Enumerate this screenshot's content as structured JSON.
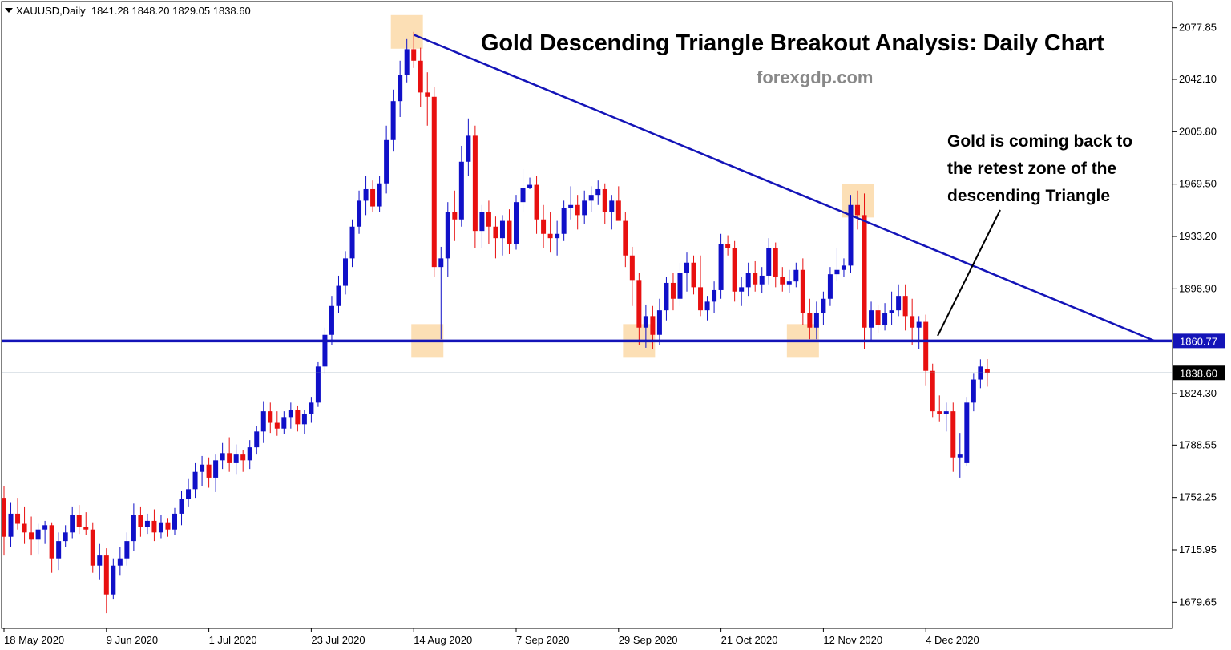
{
  "header": {
    "symbol": "XAUUSD,Daily",
    "ohlc": "1841.28 1848.20 1829.05 1838.60"
  },
  "title": "Gold Descending Triangle Breakout Analysis: Daily Chart",
  "watermark": "forexgdp.com",
  "annotation": {
    "line1": "Gold is coming back to",
    "line2": "the retest zone of the",
    "line3": "descending Triangle"
  },
  "chart_data": {
    "type": "candlestick",
    "symbol": "XAUUSD",
    "timeframe": "Daily",
    "ylim": [
      1661.5,
      2096.0
    ],
    "y_ticks": [
      2077.85,
      2042.1,
      2005.8,
      1969.5,
      1933.2,
      1896.9,
      1824.3,
      1788.55,
      1752.25,
      1715.95,
      1679.65
    ],
    "x_ticks": [
      "18 May 2020",
      "9 Jun 2020",
      "1 Jul 2020",
      "23 Jul 2020",
      "14 Aug 2020",
      "7 Sep 2020",
      "29 Sep 2020",
      "21 Oct 2020",
      "12 Nov 2020",
      "4 Dec 2020"
    ],
    "support_level": 1860.77,
    "current_price": 1838.6,
    "candles": [
      [
        1752,
        1760,
        1712,
        1725
      ],
      [
        1725,
        1749,
        1718,
        1741
      ],
      [
        1741,
        1752,
        1730,
        1734
      ],
      [
        1734,
        1746,
        1720,
        1728
      ],
      [
        1728,
        1739,
        1712,
        1723
      ],
      [
        1723,
        1734,
        1713,
        1730
      ],
      [
        1730,
        1736,
        1720,
        1733
      ],
      [
        1733,
        1735,
        1700,
        1710
      ],
      [
        1710,
        1728,
        1702,
        1722
      ],
      [
        1722,
        1733,
        1718,
        1728
      ],
      [
        1728,
        1746,
        1724,
        1740
      ],
      [
        1740,
        1747,
        1727,
        1732
      ],
      [
        1732,
        1742,
        1726,
        1730
      ],
      [
        1730,
        1735,
        1700,
        1705
      ],
      [
        1705,
        1720,
        1695,
        1712
      ],
      [
        1712,
        1717,
        1672,
        1685
      ],
      [
        1685,
        1710,
        1682,
        1705
      ],
      [
        1705,
        1718,
        1698,
        1710
      ],
      [
        1710,
        1728,
        1705,
        1722
      ],
      [
        1722,
        1748,
        1715,
        1740
      ],
      [
        1740,
        1746,
        1725,
        1732
      ],
      [
        1732,
        1741,
        1727,
        1736
      ],
      [
        1736,
        1744,
        1722,
        1728
      ],
      [
        1728,
        1740,
        1724,
        1735
      ],
      [
        1735,
        1738,
        1725,
        1730
      ],
      [
        1730,
        1745,
        1726,
        1741
      ],
      [
        1741,
        1757,
        1733,
        1751
      ],
      [
        1751,
        1765,
        1746,
        1758
      ],
      [
        1758,
        1776,
        1752,
        1770
      ],
      [
        1770,
        1781,
        1760,
        1775
      ],
      [
        1775,
        1780,
        1759,
        1766
      ],
      [
        1766,
        1782,
        1756,
        1778
      ],
      [
        1778,
        1790,
        1772,
        1783
      ],
      [
        1783,
        1794,
        1770,
        1776
      ],
      [
        1776,
        1789,
        1768,
        1782
      ],
      [
        1782,
        1785,
        1770,
        1778
      ],
      [
        1778,
        1792,
        1772,
        1787
      ],
      [
        1787,
        1802,
        1782,
        1798
      ],
      [
        1798,
        1819,
        1790,
        1812
      ],
      [
        1812,
        1818,
        1797,
        1804
      ],
      [
        1804,
        1812,
        1795,
        1800
      ],
      [
        1800,
        1812,
        1796,
        1808
      ],
      [
        1808,
        1818,
        1800,
        1813
      ],
      [
        1813,
        1816,
        1798,
        1803
      ],
      [
        1803,
        1813,
        1796,
        1810
      ],
      [
        1810,
        1822,
        1804,
        1818
      ],
      [
        1818,
        1846,
        1815,
        1843
      ],
      [
        1843,
        1870,
        1838,
        1865
      ],
      [
        1865,
        1892,
        1858,
        1885
      ],
      [
        1885,
        1906,
        1880,
        1899
      ],
      [
        1899,
        1923,
        1893,
        1918
      ],
      [
        1918,
        1945,
        1912,
        1940
      ],
      [
        1940,
        1965,
        1935,
        1958
      ],
      [
        1958,
        1975,
        1948,
        1966
      ],
      [
        1966,
        1972,
        1950,
        1954
      ],
      [
        1954,
        1975,
        1950,
        1970
      ],
      [
        1970,
        2010,
        1963,
        2000
      ],
      [
        2000,
        2035,
        1992,
        2027
      ],
      [
        2027,
        2055,
        2016,
        2045
      ],
      [
        2045,
        2070,
        2040,
        2063
      ],
      [
        2063,
        2075,
        2050,
        2055
      ],
      [
        2055,
        2064,
        2023,
        2033
      ],
      [
        2033,
        2047,
        2010,
        2030
      ],
      [
        2030,
        2037,
        1905,
        1912
      ],
      [
        1912,
        1926,
        1862,
        1918
      ],
      [
        1918,
        1957,
        1905,
        1950
      ],
      [
        1950,
        1965,
        1930,
        1945
      ],
      [
        1945,
        1996,
        1940,
        1985
      ],
      [
        1985,
        2015,
        1975,
        2003
      ],
      [
        2003,
        2010,
        1925,
        1937
      ],
      [
        1937,
        1955,
        1925,
        1950
      ],
      [
        1950,
        1958,
        1928,
        1940
      ],
      [
        1940,
        1947,
        1918,
        1932
      ],
      [
        1932,
        1948,
        1920,
        1944
      ],
      [
        1944,
        1952,
        1921,
        1928
      ],
      [
        1928,
        1962,
        1924,
        1957
      ],
      [
        1957,
        1980,
        1950,
        1967
      ],
      [
        1967,
        1974,
        1966,
        1969
      ],
      [
        1969,
        1975,
        1935,
        1945
      ],
      [
        1945,
        1955,
        1925,
        1935
      ],
      [
        1935,
        1950,
        1922,
        1932
      ],
      [
        1932,
        1944,
        1920,
        1935
      ],
      [
        1935,
        1958,
        1930,
        1953
      ],
      [
        1953,
        1968,
        1945,
        1955
      ],
      [
        1955,
        1962,
        1938,
        1948
      ],
      [
        1948,
        1965,
        1942,
        1958
      ],
      [
        1958,
        1968,
        1950,
        1962
      ],
      [
        1962,
        1972,
        1955,
        1966
      ],
      [
        1966,
        1970,
        1942,
        1950
      ],
      [
        1950,
        1962,
        1938,
        1958
      ],
      [
        1958,
        1968,
        1948,
        1944
      ],
      [
        1944,
        1950,
        1912,
        1920
      ],
      [
        1920,
        1926,
        1885,
        1903
      ],
      [
        1903,
        1908,
        1858,
        1870
      ],
      [
        1870,
        1886,
        1856,
        1878
      ],
      [
        1878,
        1885,
        1855,
        1865
      ],
      [
        1865,
        1890,
        1858,
        1882
      ],
      [
        1882,
        1905,
        1875,
        1901
      ],
      [
        1901,
        1908,
        1882,
        1890
      ],
      [
        1890,
        1915,
        1885,
        1908
      ],
      [
        1908,
        1922,
        1895,
        1915
      ],
      [
        1915,
        1920,
        1893,
        1898
      ],
      [
        1898,
        1920,
        1878,
        1882
      ],
      [
        1882,
        1892,
        1875,
        1888
      ],
      [
        1888,
        1902,
        1880,
        1896
      ],
      [
        1896,
        1935,
        1890,
        1928
      ],
      [
        1928,
        1934,
        1920,
        1925
      ],
      [
        1925,
        1930,
        1888,
        1895
      ],
      [
        1895,
        1905,
        1885,
        1898
      ],
      [
        1898,
        1915,
        1892,
        1908
      ],
      [
        1908,
        1916,
        1895,
        1900
      ],
      [
        1900,
        1912,
        1894,
        1906
      ],
      [
        1906,
        1932,
        1900,
        1925
      ],
      [
        1925,
        1929,
        1898,
        1905
      ],
      [
        1905,
        1912,
        1895,
        1900
      ],
      [
        1900,
        1910,
        1894,
        1902
      ],
      [
        1902,
        1915,
        1898,
        1910
      ],
      [
        1910,
        1918,
        1872,
        1880
      ],
      [
        1880,
        1890,
        1862,
        1870
      ],
      [
        1870,
        1888,
        1862,
        1880
      ],
      [
        1880,
        1895,
        1872,
        1890
      ],
      [
        1890,
        1912,
        1885,
        1907
      ],
      [
        1907,
        1925,
        1902,
        1910
      ],
      [
        1910,
        1918,
        1905,
        1913
      ],
      [
        1913,
        1962,
        1908,
        1955
      ],
      [
        1955,
        1965,
        1938,
        1948
      ],
      [
        1948,
        1963,
        1855,
        1870
      ],
      [
        1870,
        1888,
        1860,
        1882
      ],
      [
        1882,
        1886,
        1866,
        1872
      ],
      [
        1872,
        1887,
        1868,
        1880
      ],
      [
        1880,
        1895,
        1872,
        1882
      ],
      [
        1882,
        1900,
        1878,
        1892
      ],
      [
        1892,
        1900,
        1868,
        1878
      ],
      [
        1878,
        1890,
        1858,
        1870
      ],
      [
        1870,
        1878,
        1855,
        1874
      ],
      [
        1874,
        1879,
        1830,
        1840
      ],
      [
        1840,
        1845,
        1808,
        1812
      ],
      [
        1812,
        1823,
        1805,
        1810
      ],
      [
        1810,
        1818,
        1798,
        1812
      ],
      [
        1812,
        1818,
        1770,
        1780
      ],
      [
        1780,
        1797,
        1766,
        1782
      ],
      [
        1776,
        1822,
        1774,
        1818
      ],
      [
        1818,
        1838,
        1812,
        1834
      ],
      [
        1834,
        1848,
        1828,
        1843
      ],
      [
        1841.28,
        1848.2,
        1829.05,
        1838.6
      ]
    ],
    "highlights": [
      "July-August top near 2075",
      "October lower high near 1962",
      "support touches near 1860"
    ],
    "trendline": {
      "from": 2073,
      "to": 1860.77
    }
  }
}
